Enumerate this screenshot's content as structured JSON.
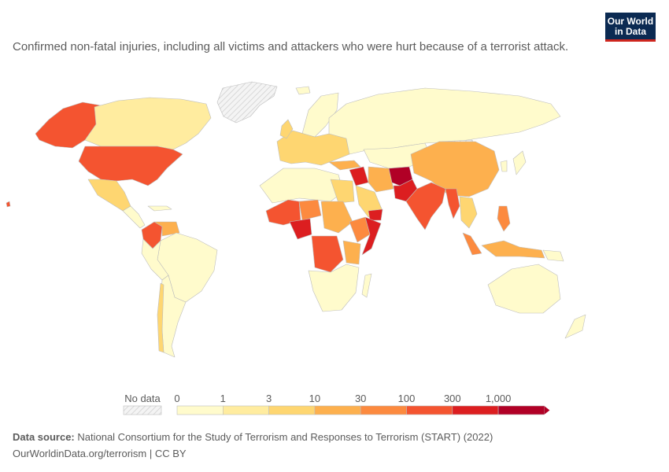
{
  "header": {
    "subtitle": "Confirmed non-fatal injuries, including all victims and attackers who were hurt because of a terrorist attack.",
    "logo_line1": "Our World",
    "logo_line2": "in Data"
  },
  "legend": {
    "no_data_label": "No data",
    "bins": [
      {
        "label": "0",
        "color": "#fffbcc"
      },
      {
        "label": "1",
        "color": "#ffec9f"
      },
      {
        "label": "3",
        "color": "#fed671"
      },
      {
        "label": "10",
        "color": "#fdb04e"
      },
      {
        "label": "30",
        "color": "#fc8a3f"
      },
      {
        "label": "100",
        "color": "#f45430"
      },
      {
        "label": "300",
        "color": "#dc1e20"
      },
      {
        "label": "1,000",
        "color": "#b10026"
      }
    ]
  },
  "colors": {
    "ocean": "#ffffff",
    "border": "#bdbdbd",
    "no_data": "#e6e6e6"
  },
  "footer": {
    "source_label": "Data source:",
    "source_text": "National Consortium for the Study of Terrorism and Responses to Terrorism (START) (2022)",
    "link": "OurWorldinData.org/terrorism | CC BY"
  }
}
